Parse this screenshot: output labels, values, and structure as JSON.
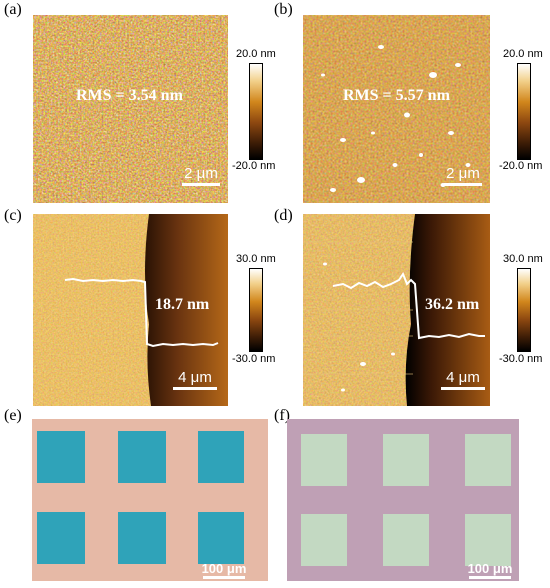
{
  "panels": {
    "a": {
      "label": "(a)",
      "rms_text": "RMS = 3.54 nm",
      "scale_text": "2 μm"
    },
    "b": {
      "label": "(b)",
      "rms_text": "RMS = 5.57 nm",
      "scale_text": "2 μm"
    },
    "c": {
      "label": "(c)",
      "step_text": "18.7 nm",
      "scale_text": "4 μm"
    },
    "d": {
      "label": "(d)",
      "step_text": "36.2 nm",
      "scale_text": "4 μm"
    },
    "e": {
      "label": "(e)",
      "scale_text": "100 μm",
      "square_color": "#2fa3b9",
      "background_color": "#e6b9a6"
    },
    "f": {
      "label": "(f)",
      "scale_text": "100 μm",
      "square_color": "#c3d9c2",
      "background_color": "#bfa0b5"
    }
  },
  "colorbars": {
    "top": {
      "max": "20.0 nm",
      "min": "-20.0 nm"
    },
    "middle": {
      "max": "30.0 nm",
      "min": "-30.0 nm"
    }
  },
  "colors": {
    "afm_dark": "#3a1b06",
    "afm_mid": "#b86a1a",
    "afm_light": "#f6d690"
  }
}
